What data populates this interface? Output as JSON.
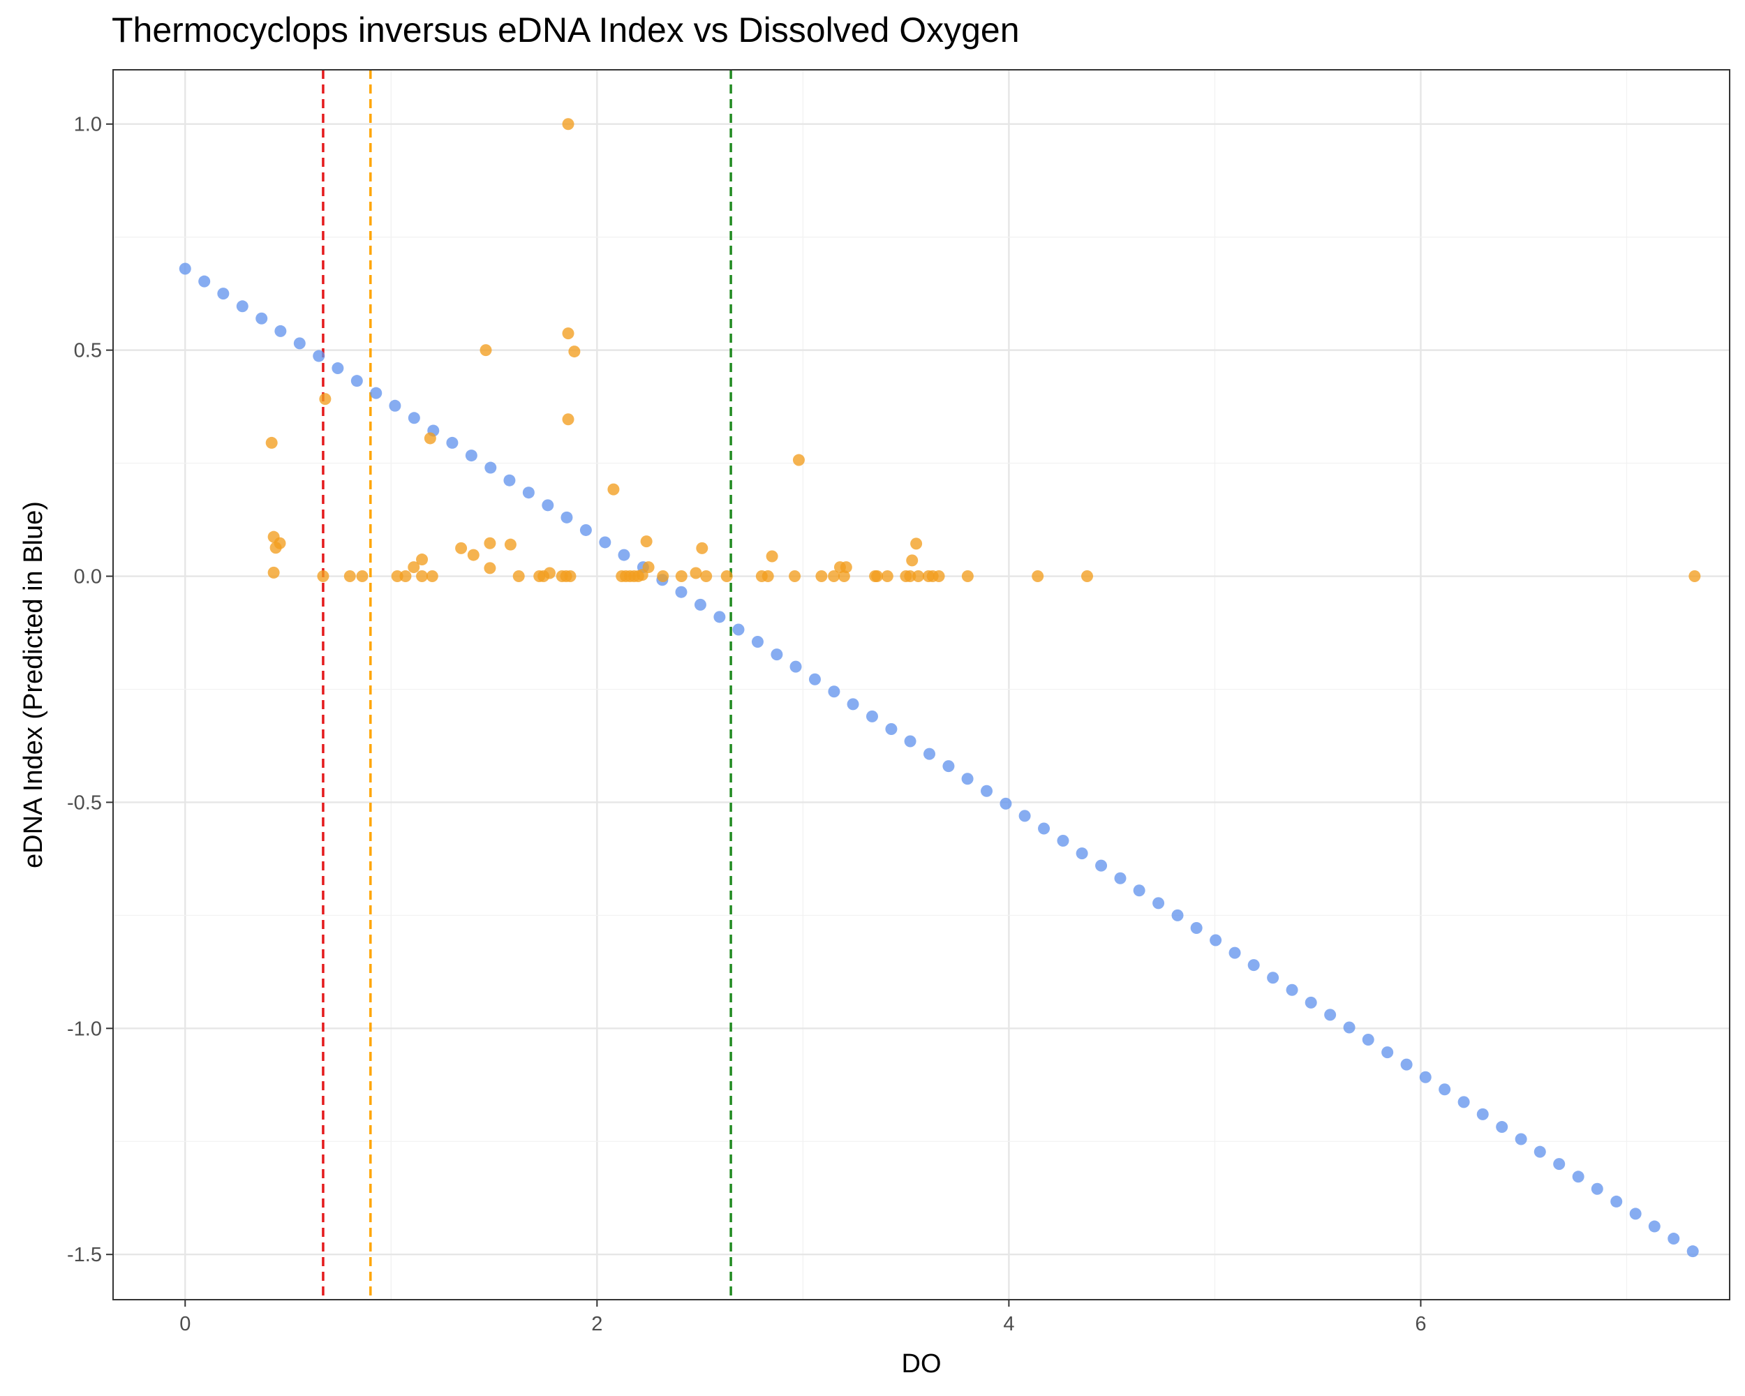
{
  "chart_data": {
    "type": "scatter",
    "title": "Thermocyclops inversus eDNA Index vs Dissolved Oxygen",
    "xlabel": "DO",
    "ylabel": "eDNA Index (Predicted in Blue)",
    "xlim": [
      -0.35,
      7.5
    ],
    "ylim": [
      -1.6,
      1.12
    ],
    "xticks": [
      0,
      2,
      4,
      6
    ],
    "xtick_labels": [
      "0",
      "2",
      "4",
      "6"
    ],
    "yticks": [
      1.0,
      0.5,
      0.0,
      -0.5,
      -1.0,
      -1.5
    ],
    "ytick_labels": [
      "1.0",
      "0.5",
      "0.0",
      "-0.5",
      "-1.0",
      "-1.5"
    ],
    "grid": true,
    "vlines": [
      {
        "x": 0.67,
        "color": "#e41a1c"
      },
      {
        "x": 0.9,
        "color": "#ffa500"
      },
      {
        "x": 2.65,
        "color": "#228b22"
      }
    ],
    "series": [
      {
        "color": "#6495ed",
        "x": [
          0.0,
          0.093,
          0.185,
          0.278,
          0.371,
          0.463,
          0.556,
          0.649,
          0.741,
          0.834,
          0.927,
          1.019,
          1.112,
          1.205,
          1.297,
          1.39,
          1.483,
          1.575,
          1.668,
          1.761,
          1.853,
          1.946,
          2.039,
          2.131,
          2.224,
          2.317,
          2.409,
          2.502,
          2.595,
          2.687,
          2.78,
          2.873,
          2.965,
          3.058,
          3.151,
          3.243,
          3.336,
          3.429,
          3.521,
          3.614,
          3.707,
          3.799,
          3.892,
          3.985,
          4.077,
          4.17,
          4.263,
          4.355,
          4.448,
          4.541,
          4.633,
          4.726,
          4.819,
          4.911,
          5.004,
          5.097,
          5.189,
          5.282,
          5.375,
          5.467,
          5.56,
          5.653,
          5.745,
          5.838,
          5.931,
          6.023,
          6.116,
          6.209,
          6.301,
          6.394,
          6.487,
          6.579,
          6.672,
          6.765,
          6.857,
          6.95,
          7.043,
          7.135,
          7.228,
          7.321
        ],
        "y": [
          0.68,
          0.652,
          0.625,
          0.597,
          0.57,
          0.542,
          0.515,
          0.487,
          0.46,
          0.432,
          0.405,
          0.377,
          0.35,
          0.322,
          0.295,
          0.267,
          0.24,
          0.212,
          0.185,
          0.157,
          0.13,
          0.102,
          0.075,
          0.047,
          0.02,
          -0.008,
          -0.035,
          -0.063,
          -0.09,
          -0.118,
          -0.145,
          -0.173,
          -0.2,
          -0.228,
          -0.255,
          -0.283,
          -0.31,
          -0.338,
          -0.365,
          -0.393,
          -0.42,
          -0.448,
          -0.475,
          -0.503,
          -0.53,
          -0.558,
          -0.585,
          -0.613,
          -0.64,
          -0.668,
          -0.695,
          -0.723,
          -0.75,
          -0.778,
          -0.805,
          -0.833,
          -0.86,
          -0.888,
          -0.915,
          -0.943,
          -0.97,
          -0.998,
          -1.025,
          -1.053,
          -1.08,
          -1.108,
          -1.135,
          -1.163,
          -1.19,
          -1.218,
          -1.245,
          -1.273,
          -1.3,
          -1.328,
          -1.355,
          -1.383,
          -1.41,
          -1.438,
          -1.465,
          -1.493
        ]
      },
      {
        "color": "#f29e1f",
        "x": [
          1.86,
          1.86,
          1.89,
          1.46,
          1.86,
          0.68,
          0.42,
          1.19,
          2.98,
          2.08,
          0.43,
          0.46,
          0.44,
          1.48,
          1.58,
          2.24,
          2.51,
          2.85,
          1.34,
          1.4,
          1.15,
          1.11,
          1.48,
          3.55,
          3.53,
          3.18,
          3.21,
          2.25,
          0.43,
          1.77,
          2.22,
          2.48,
          0.67,
          0.8,
          0.86,
          1.03,
          1.07,
          1.15,
          1.2,
          1.62,
          1.72,
          1.74,
          1.83,
          1.85,
          1.87,
          2.12,
          2.14,
          2.16,
          2.18,
          2.2,
          2.32,
          2.41,
          2.53,
          2.63,
          2.8,
          2.83,
          2.96,
          3.09,
          3.15,
          3.2,
          3.35,
          3.36,
          3.41,
          3.5,
          3.52,
          3.56,
          3.61,
          3.63,
          3.66,
          3.8,
          4.14,
          4.38,
          7.33
        ],
        "y": [
          1.0,
          0.537,
          0.497,
          0.5,
          0.347,
          0.392,
          0.295,
          0.305,
          0.257,
          0.192,
          0.087,
          0.073,
          0.063,
          0.073,
          0.07,
          0.077,
          0.062,
          0.044,
          0.062,
          0.047,
          0.037,
          0.02,
          0.018,
          0.072,
          0.035,
          0.02,
          0.02,
          0.02,
          0.008,
          0.007,
          0.003,
          0.007,
          0.0,
          0.0,
          0.0,
          0.0,
          0.0,
          0.0,
          0.0,
          0.0,
          0.0,
          0.0,
          0.0,
          0.0,
          0.0,
          0.0,
          0.0,
          0.0,
          0.0,
          0.0,
          0.0,
          0.0,
          0.0,
          0.0,
          0.0,
          0.0,
          0.0,
          0.0,
          0.0,
          0.0,
          0.0,
          0.0,
          0.0,
          0.0,
          0.0,
          0.0,
          0.0,
          0.0,
          0.0,
          0.0,
          0.0,
          0.0,
          0.0
        ]
      }
    ]
  }
}
